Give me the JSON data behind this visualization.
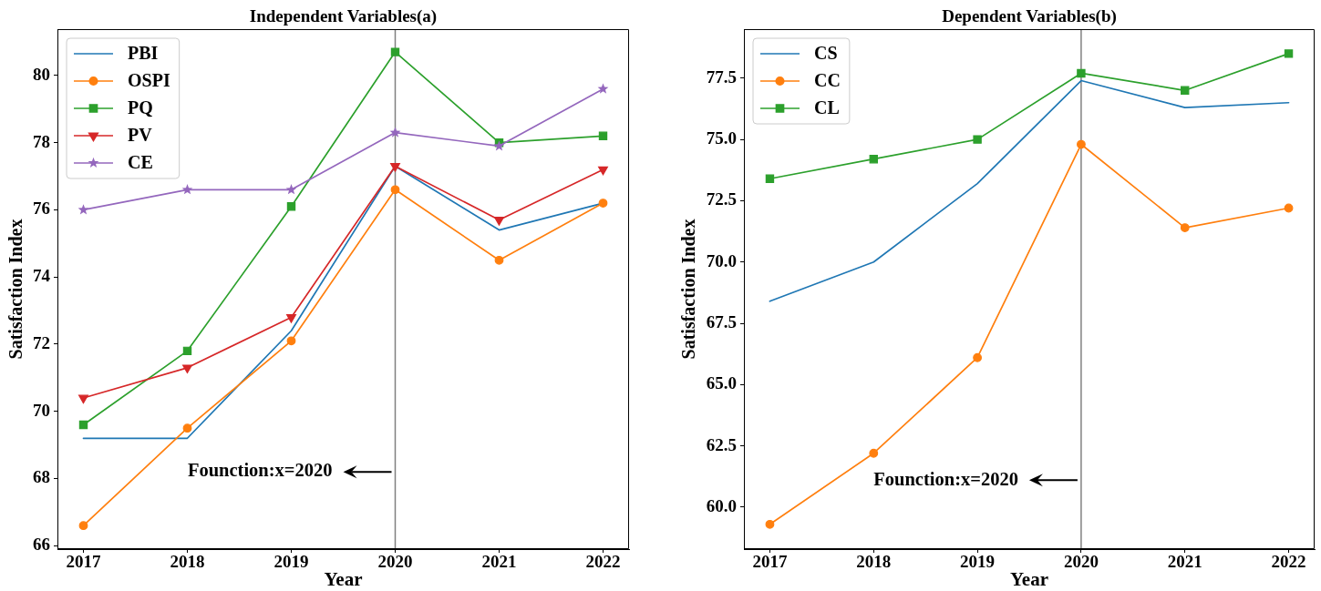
{
  "chart_data": [
    {
      "type": "line",
      "title": "Independent Variables(a)",
      "xlabel": "Year",
      "ylabel": "Satisfaction Index",
      "x": [
        2017,
        2018,
        2019,
        2020,
        2021,
        2022
      ],
      "xlim": [
        2016.75,
        2022.25
      ],
      "xticks": [
        2017,
        2018,
        2019,
        2020,
        2021,
        2022
      ],
      "ylim": [
        65.9,
        81.38
      ],
      "yticks": [
        66,
        68,
        70,
        72,
        74,
        76,
        78,
        80
      ],
      "grid": false,
      "legend": "top left",
      "series": [
        {
          "name": "PBI",
          "color": "#1f77b4",
          "marker": "none",
          "values": [
            69.2,
            69.2,
            72.4,
            77.3,
            75.4,
            76.2
          ]
        },
        {
          "name": "OSPI",
          "color": "#ff7f0e",
          "marker": "circle",
          "values": [
            66.6,
            69.5,
            72.1,
            76.6,
            74.5,
            76.2
          ]
        },
        {
          "name": "PQ",
          "color": "#2ca02c",
          "marker": "square",
          "values": [
            69.6,
            71.8,
            76.1,
            80.7,
            78.0,
            78.2
          ]
        },
        {
          "name": "PV",
          "color": "#d62728",
          "marker": "triangle",
          "values": [
            70.4,
            71.3,
            72.8,
            77.3,
            75.7,
            77.2
          ]
        },
        {
          "name": "CE",
          "color": "#9467bd",
          "marker": "star",
          "values": [
            76.0,
            76.6,
            76.6,
            78.3,
            77.9,
            79.6
          ]
        }
      ],
      "ref_lines": [
        {
          "axis": "x",
          "value": 2020,
          "color": "#808080"
        }
      ],
      "annotations": [
        {
          "text": "Founction:x=2020",
          "x": 2020,
          "y": 68.2
        }
      ]
    },
    {
      "type": "line",
      "title": "Dependent Variables(b)",
      "xlabel": "Year",
      "ylabel": "Satisfaction Index",
      "x": [
        2017,
        2018,
        2019,
        2020,
        2021,
        2022
      ],
      "xlim": [
        2016.75,
        2022.25
      ],
      "xticks": [
        2017,
        2018,
        2019,
        2020,
        2021,
        2022
      ],
      "ylim": [
        58.29,
        79.5
      ],
      "yticks": [
        {
          "value": 60,
          "label": "60.0"
        },
        62.5,
        {
          "value": 65,
          "label": "65.0"
        },
        67.5,
        {
          "value": 70,
          "label": "70.0"
        },
        72.5,
        {
          "value": 75,
          "label": "75.0"
        },
        77.5
      ],
      "grid": false,
      "legend": "top left",
      "series": [
        {
          "name": "CS",
          "color": "#1f77b4",
          "marker": "none",
          "values": [
            68.4,
            70.0,
            73.2,
            77.4,
            76.3,
            76.5
          ]
        },
        {
          "name": "CC",
          "color": "#ff7f0e",
          "marker": "circle",
          "values": [
            59.3,
            62.2,
            66.1,
            74.8,
            71.4,
            72.2
          ]
        },
        {
          "name": "CL",
          "color": "#2ca02c",
          "marker": "square",
          "values": [
            73.4,
            74.2,
            75.0,
            77.7,
            77.0,
            78.5
          ]
        }
      ],
      "ref_lines": [
        {
          "axis": "x",
          "value": 2020,
          "color": "#808080"
        }
      ],
      "annotations": [
        {
          "text": "Founction:x=2020",
          "x": 2020,
          "y": 61.1
        }
      ]
    }
  ]
}
